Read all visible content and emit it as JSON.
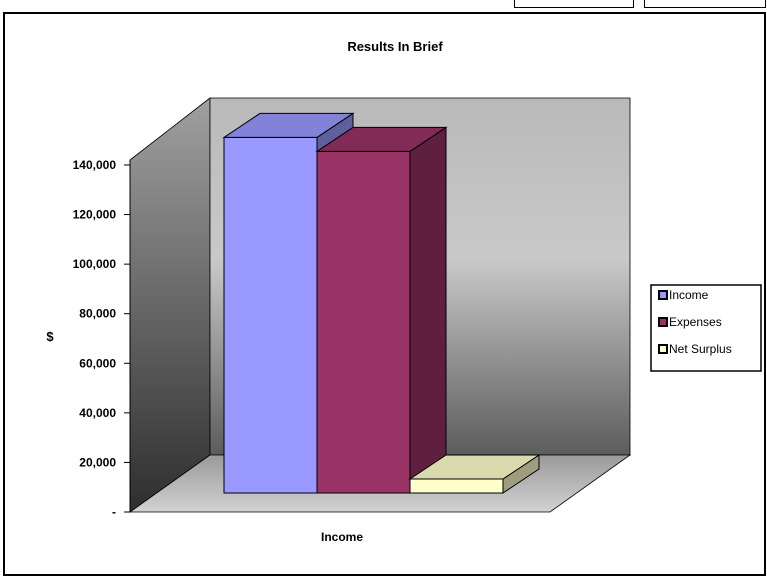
{
  "chart_data": {
    "type": "bar",
    "title": "Results In Brief",
    "xlabel": "",
    "ylabel": "$",
    "categories": [
      "Income"
    ],
    "series": [
      {
        "name": "Income",
        "values": [
          127000
        ],
        "color": "#9999FF"
      },
      {
        "name": "Expenses",
        "values": [
          122000
        ],
        "color": "#993366"
      },
      {
        "name": "Net Surplus",
        "values": [
          5000
        ],
        "color": "#FFFFCC"
      }
    ],
    "ylim": [
      0,
      140000
    ],
    "yticks": [
      {
        "value": 0,
        "label": "-"
      },
      {
        "value": 20000,
        "label": "20,000"
      },
      {
        "value": 40000,
        "label": "40,000"
      },
      {
        "value": 60000,
        "label": "60,000"
      },
      {
        "value": 80000,
        "label": "80,000"
      },
      {
        "value": 100000,
        "label": "100,000"
      },
      {
        "value": 120000,
        "label": "120,000"
      },
      {
        "value": 140000,
        "label": "140,000"
      }
    ],
    "legend_position": "right",
    "grid": false,
    "style": "3d-clustered-column"
  }
}
